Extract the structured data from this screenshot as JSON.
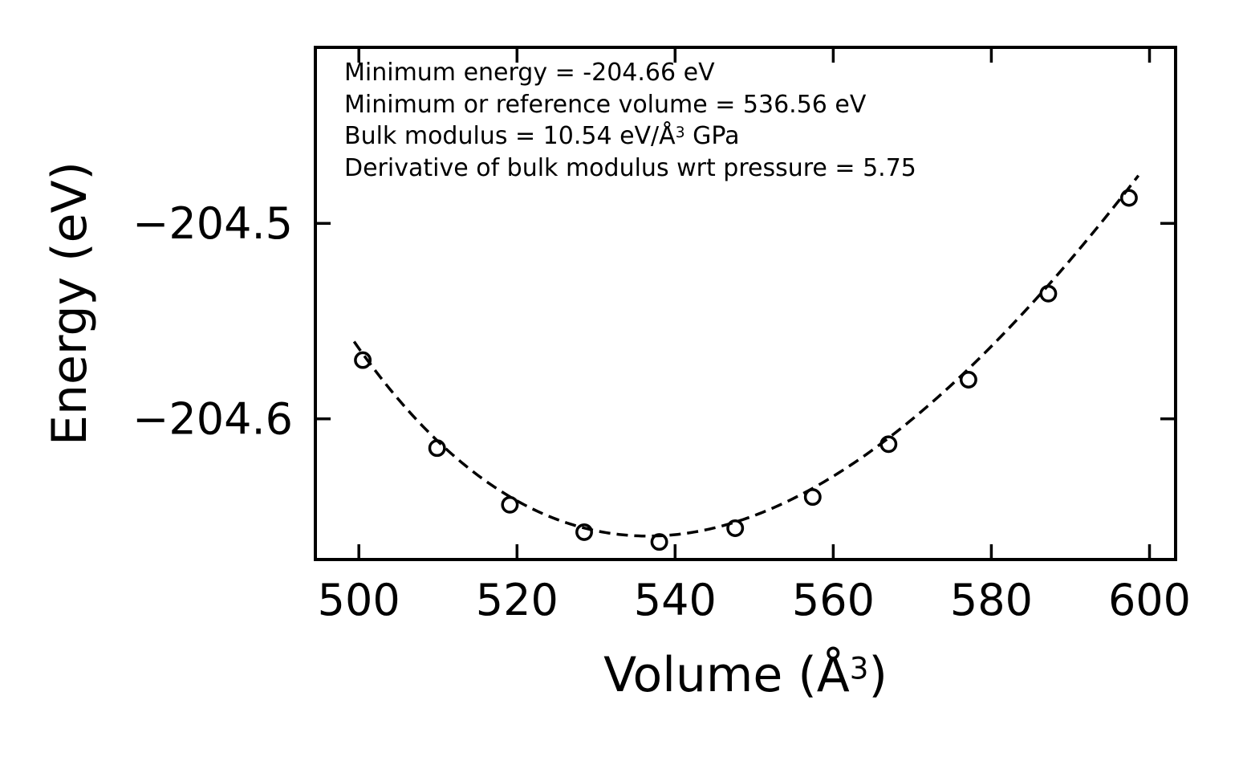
{
  "figure": {
    "background_color": "#ffffff",
    "foreground_color": "#000000"
  },
  "chart_data": {
    "type": "scatter",
    "title": "",
    "xlabel": "Volume (Å³)",
    "xlabel_parts": {
      "prefix": "Volume (Å",
      "sup": "3",
      "suffix": ")"
    },
    "ylabel": "Energy (eV)",
    "x_ticks": [
      500,
      520,
      540,
      560,
      580,
      600
    ],
    "x_tick_labels": [
      "500",
      "520",
      "540",
      "560",
      "580",
      "600"
    ],
    "y_ticks": [
      -204.5,
      -204.6
    ],
    "y_tick_labels": [
      "−204.5",
      "−204.6"
    ],
    "xlim": [
      494.5,
      603.3
    ],
    "ylim": [
      -204.672,
      -204.41
    ],
    "grid": false,
    "legend": "none",
    "line_color": "#000000",
    "line_style": "dashed",
    "marker": "open-circle",
    "points": [
      {
        "volume": 500.5,
        "energy": -204.57
      },
      {
        "volume": 509.9,
        "energy": -204.615
      },
      {
        "volume": 519.1,
        "energy": -204.644
      },
      {
        "volume": 528.5,
        "energy": -204.658
      },
      {
        "volume": 538.0,
        "energy": -204.663
      },
      {
        "volume": 547.6,
        "energy": -204.656
      },
      {
        "volume": 557.4,
        "energy": -204.64
      },
      {
        "volume": 567.0,
        "energy": -204.613
      },
      {
        "volume": 577.1,
        "energy": -204.58
      },
      {
        "volume": 587.2,
        "energy": -204.536
      },
      {
        "volume": 597.4,
        "energy": -204.487
      }
    ],
    "fit": {
      "model": "birch-murnaghan",
      "min_energy_eV": -204.66,
      "reference_volume": 536.56,
      "bulk_modulus": 10.54,
      "bulk_modulus_derivative": 5.75,
      "curve_v_range": [
        499.4,
        598.6
      ]
    },
    "annotation": {
      "line1": "Minimum energy = -204.66 eV",
      "line2": "Minimum or reference volume = 536.56 eV",
      "line3": {
        "prefix": "Bulk modulus = 10.54 eV/Å",
        "sup": "3",
        "suffix": " GPa"
      },
      "line3_full": "Bulk modulus = 10.54 eV/Å³ GPa",
      "line4": "Derivative of bulk modulus wrt pressure = 5.75"
    }
  }
}
